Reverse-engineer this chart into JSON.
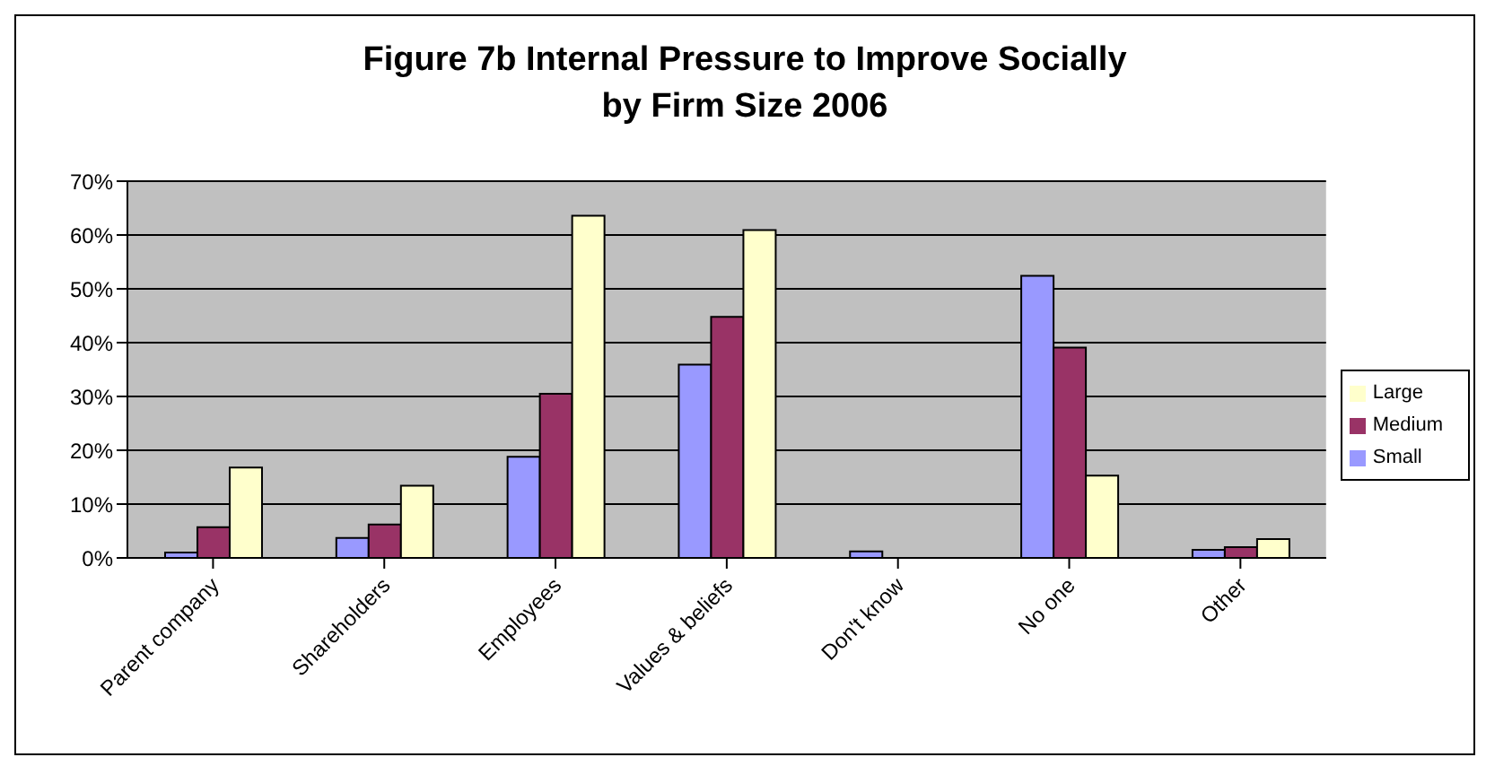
{
  "chart_data": {
    "type": "bar",
    "title": "Figure 7b Internal Pressure to Improve Socially\nby Firm Size 2006",
    "categories": [
      "Parent company",
      "Shareholders",
      "Employees",
      "Values & beliefs",
      "Don't know",
      "No one",
      "Other"
    ],
    "series": [
      {
        "name": "Small",
        "color": "#9999ff",
        "values": [
          1,
          3.7,
          18.8,
          35.9,
          1.2,
          52.4,
          1.5
        ]
      },
      {
        "name": "Medium",
        "color": "#993366",
        "values": [
          5.7,
          6.2,
          30.5,
          44.8,
          0,
          39.1,
          2.0
        ]
      },
      {
        "name": "Large",
        "color": "#ffffcc",
        "values": [
          16.8,
          13.4,
          63.6,
          60.9,
          0,
          15.3,
          3.5
        ]
      }
    ],
    "ylim": [
      0,
      70
    ],
    "yticks": [
      {
        "value": 0,
        "label": "0%"
      },
      {
        "value": 10,
        "label": "10%"
      },
      {
        "value": 20,
        "label": "20%"
      },
      {
        "value": 30,
        "label": "30%"
      },
      {
        "value": 40,
        "label": "40%"
      },
      {
        "value": 50,
        "label": "50%"
      },
      {
        "value": 60,
        "label": "60%"
      },
      {
        "value": 70,
        "label": "70%"
      }
    ],
    "grid": "y",
    "legend": "right"
  }
}
